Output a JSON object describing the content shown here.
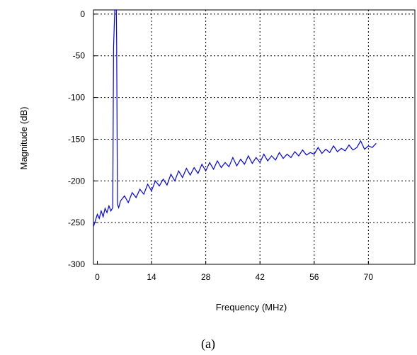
{
  "chart_data": {
    "type": "line",
    "title": "",
    "xlabel": "Frequency (MHz)",
    "ylabel": "Magnitude (dB)",
    "caption": "(a)",
    "xlim": [
      -1,
      82
    ],
    "ylim": [
      -300,
      5
    ],
    "xticks": [
      0,
      14,
      28,
      42,
      56,
      70
    ],
    "yticks": [
      0,
      -50,
      -100,
      -150,
      -200,
      -250,
      -300
    ],
    "grid": true,
    "series_color": "#0000ff",
    "series": [
      {
        "x": [
          -1,
          0,
          0.5,
          1,
          1.5,
          2,
          2.5,
          3,
          3.5,
          4,
          4.0,
          4.2,
          4.5,
          4.9,
          5.0,
          5.2,
          5.5,
          6,
          7,
          8,
          9,
          10,
          11,
          12,
          13,
          14,
          15,
          16,
          17,
          18,
          19,
          20,
          21,
          22,
          23,
          24,
          25,
          26,
          27,
          28,
          29,
          30,
          31,
          32,
          33,
          34,
          35,
          36,
          37,
          38,
          39,
          40,
          41,
          42,
          43,
          44,
          45,
          46,
          47,
          48,
          49,
          50,
          51,
          52,
          53,
          54,
          55,
          56,
          57,
          58,
          59,
          60,
          61,
          62,
          63,
          64,
          65,
          66,
          67,
          68,
          69,
          70,
          71,
          72
        ],
        "y": [
          -255,
          -240,
          -245,
          -236,
          -243,
          -233,
          -238,
          -230,
          -236,
          -232,
          -228,
          -40,
          5,
          5,
          -40,
          -228,
          -232,
          -224,
          -218,
          -226,
          -214,
          -220,
          -210,
          -216,
          -204,
          -212,
          -200,
          -206,
          -198,
          -205,
          -192,
          -200,
          -188,
          -196,
          -185,
          -193,
          -184,
          -191,
          -180,
          -188,
          -178,
          -186,
          -176,
          -184,
          -178,
          -183,
          -172,
          -182,
          -174,
          -180,
          -170,
          -179,
          -172,
          -178,
          -168,
          -176,
          -170,
          -175,
          -166,
          -173,
          -168,
          -172,
          -165,
          -170,
          -163,
          -169,
          -166,
          -168,
          -160,
          -167,
          -162,
          -166,
          -158,
          -165,
          -161,
          -164,
          -157,
          -163,
          -160,
          -152,
          -162,
          -158,
          -160,
          -155
        ]
      }
    ]
  }
}
